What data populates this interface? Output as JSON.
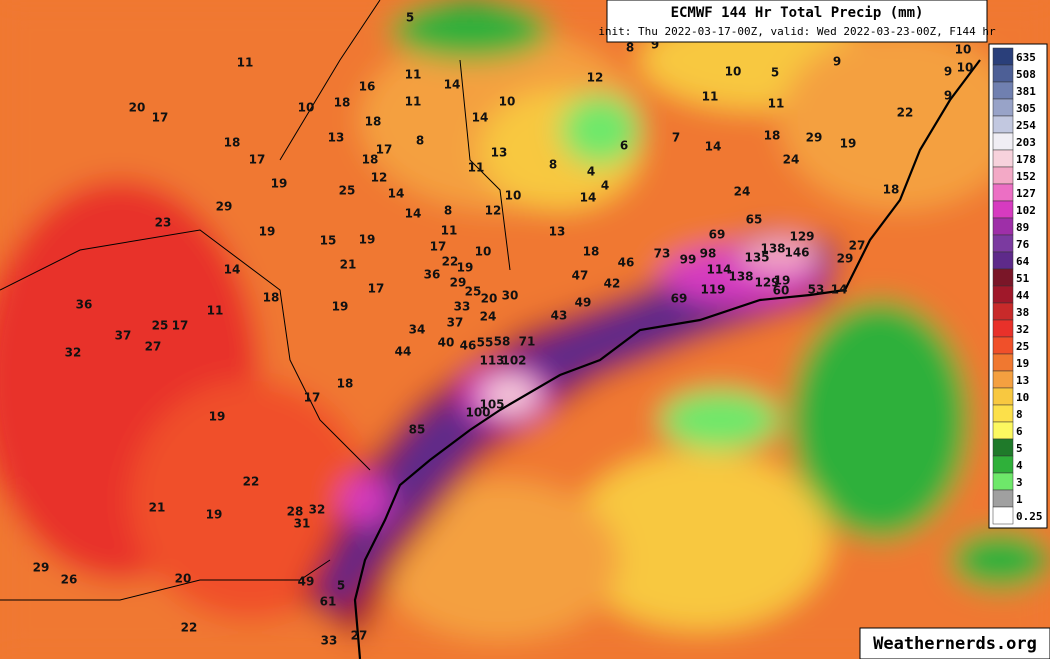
{
  "header": {
    "title": "ECMWF 144 Hr Total Precip (mm)",
    "subtitle": "init: Thu 2022-03-17-00Z, valid: Wed 2022-03-23-00Z, F144 hr"
  },
  "legend": [
    {
      "value": 635,
      "color": "#2a3f7a"
    },
    {
      "value": 508,
      "color": "#4d5f96"
    },
    {
      "value": 381,
      "color": "#7080b0"
    },
    {
      "value": 305,
      "color": "#98a3c8"
    },
    {
      "value": 254,
      "color": "#c2c8e0"
    },
    {
      "value": 203,
      "color": "#f0eef4"
    },
    {
      "value": 178,
      "color": "#f7d2dc"
    },
    {
      "value": 152,
      "color": "#f3a9c6"
    },
    {
      "value": 127,
      "color": "#ec6fc4"
    },
    {
      "value": 102,
      "color": "#d63bc0"
    },
    {
      "value": 89,
      "color": "#9e2fa8"
    },
    {
      "value": 76,
      "color": "#7b3aa0"
    },
    {
      "value": 64,
      "color": "#5e2a8a"
    },
    {
      "value": 51,
      "color": "#7a1628"
    },
    {
      "value": 44,
      "color": "#a0182a"
    },
    {
      "value": 38,
      "color": "#c82a2a"
    },
    {
      "value": 32,
      "color": "#e8312a"
    },
    {
      "value": 25,
      "color": "#f0502a"
    },
    {
      "value": 19,
      "color": "#f07830"
    },
    {
      "value": 13,
      "color": "#f4a040"
    },
    {
      "value": 10,
      "color": "#f8c840"
    },
    {
      "value": 8,
      "color": "#fce04a"
    },
    {
      "value": 6,
      "color": "#fcf860"
    },
    {
      "value": 5,
      "color": "#1f7a2a"
    },
    {
      "value": 4,
      "color": "#2fb03a"
    },
    {
      "value": 3,
      "color": "#6ee86a"
    },
    {
      "value": 1,
      "color": "#a0a0a0"
    },
    {
      "value": 0.25,
      "color": "#ffffff"
    }
  ],
  "map": {
    "labels": [
      5,
      8,
      9,
      10,
      9,
      10,
      9,
      9,
      11,
      11,
      14,
      10,
      12,
      10,
      5,
      11,
      11,
      22,
      20,
      17,
      10,
      18,
      16,
      11,
      14,
      18,
      13,
      17,
      8,
      6,
      7,
      14,
      18,
      29,
      19,
      18,
      17,
      18,
      13,
      11,
      8,
      4,
      12,
      14,
      4,
      19,
      25,
      14,
      10,
      24,
      24,
      18,
      29,
      14,
      8,
      12,
      13,
      65,
      23,
      19,
      15,
      19,
      11,
      10,
      69,
      129,
      27,
      17,
      18,
      138,
      146,
      14,
      21,
      22,
      19,
      73,
      99,
      98,
      135,
      46,
      29,
      47,
      36,
      29,
      114,
      138,
      42,
      17,
      25,
      18,
      49,
      19,
      129,
      30,
      20,
      119,
      60,
      53,
      14,
      36,
      11,
      19,
      33,
      69,
      25,
      17,
      37,
      43,
      37,
      24,
      34,
      27,
      32,
      40,
      46,
      55,
      58,
      71,
      44,
      113,
      102,
      18,
      17,
      105,
      100,
      19,
      85,
      22,
      21,
      19,
      28,
      32,
      31,
      29,
      26,
      20,
      49,
      5,
      61,
      22,
      33,
      27
    ]
  },
  "footer": {
    "watermark": "Weathernerds.org"
  }
}
